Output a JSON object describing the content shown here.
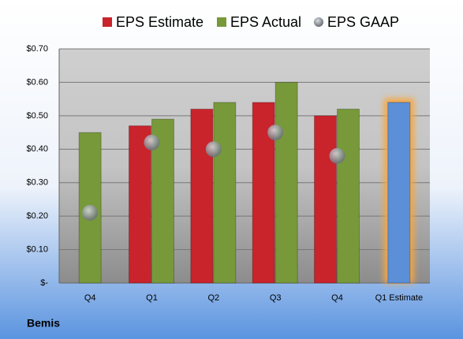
{
  "chart_data": {
    "type": "bar",
    "footer": "Bemis",
    "categories": [
      "Q4",
      "Q1",
      "Q2",
      "Q3",
      "Q4",
      "Q1 Estimate"
    ],
    "series": [
      {
        "name": "EPS Estimate",
        "color": "#c9232b",
        "values": [
          null,
          0.47,
          0.52,
          0.54,
          0.5,
          0.54
        ],
        "point_colors": [
          null,
          "#c9232b",
          "#c9232b",
          "#c9232b",
          "#c9232b",
          "#5b8fd8"
        ],
        "style": "bar"
      },
      {
        "name": "EPS Actual",
        "color": "#77993a",
        "values": [
          0.45,
          0.49,
          0.54,
          0.6,
          0.52,
          null
        ],
        "style": "bar"
      },
      {
        "name": "EPS GAAP",
        "color": "#9aa0a8",
        "values": [
          0.21,
          0.42,
          0.4,
          0.45,
          0.38,
          null
        ],
        "style": "marker"
      }
    ],
    "ylim": [
      0,
      0.7
    ],
    "yticks": [
      {
        "value": 0,
        "label": "$-"
      },
      {
        "value": 0.1,
        "label": "$0.10"
      },
      {
        "value": 0.2,
        "label": "$0.20"
      },
      {
        "value": 0.3,
        "label": "$0.30"
      },
      {
        "value": 0.4,
        "label": "$0.40"
      },
      {
        "value": 0.5,
        "label": "$0.50"
      },
      {
        "value": 0.6,
        "label": "$0.60"
      },
      {
        "value": 0.7,
        "label": "$0.70"
      }
    ],
    "grid": true,
    "legend": "top"
  }
}
